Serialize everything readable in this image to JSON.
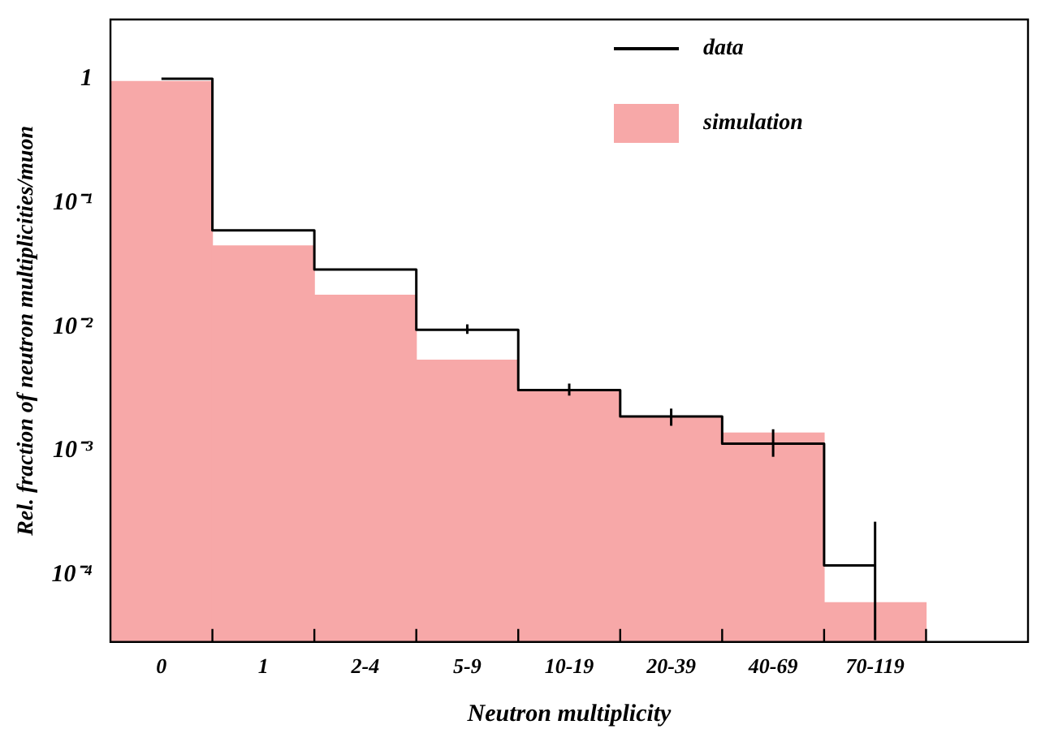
{
  "chart_data": {
    "type": "bar",
    "xlabel": "Neutron multiplicity",
    "ylabel": "Rel. fraction of neutron multiplicities/muon",
    "categories": [
      "0",
      "1",
      "2-4",
      "5-9",
      "10-19",
      "20-39",
      "40-69",
      "70-119",
      null
    ],
    "series": [
      {
        "name": "simulation",
        "type": "bar",
        "color": "#f7a8a8",
        "values": [
          0.95,
          0.045,
          0.018,
          0.0054,
          0.003,
          0.0019,
          0.0014,
          6e-05,
          null
        ]
      },
      {
        "name": "data",
        "type": "step",
        "color": "#000000",
        "values": [
          1.0,
          0.06,
          0.029,
          0.0095,
          0.0031,
          0.0019,
          0.00115,
          0.00012,
          null
        ],
        "errors": [
          null,
          null,
          null,
          [
            0.0088,
            0.0105
          ],
          [
            0.0028,
            0.0035
          ],
          [
            0.0016,
            0.0022
          ],
          [
            0.0009,
            0.0015
          ],
          [
            3e-05,
            0.00027
          ],
          null
        ]
      }
    ],
    "log": true,
    "ylim": [
      2.9e-05,
      3
    ],
    "yticks": [
      {
        "value": 0.0001,
        "label": "10⁻⁴"
      },
      {
        "value": 0.001,
        "label": "10⁻³"
      },
      {
        "value": 0.01,
        "label": "10⁻²"
      },
      {
        "value": 0.1,
        "label": "10⁻¹"
      },
      1
    ],
    "grid": false,
    "legend": "top right"
  }
}
